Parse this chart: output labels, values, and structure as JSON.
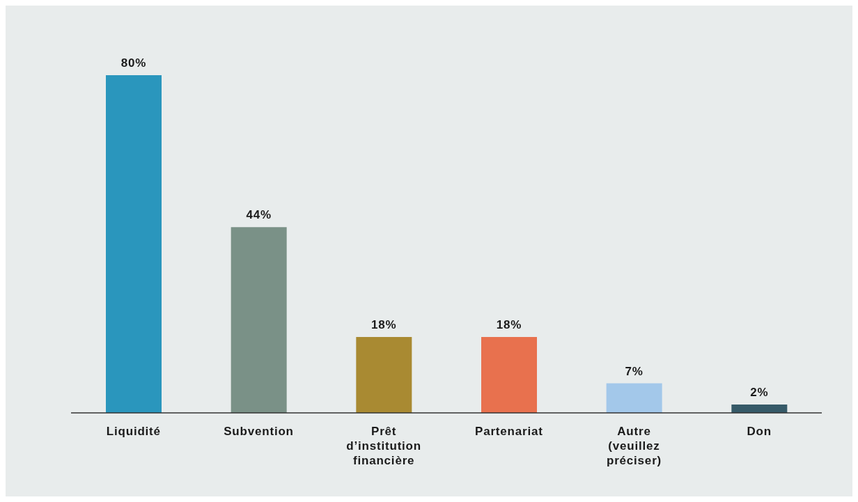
{
  "chart_data": {
    "type": "bar",
    "categories": [
      "Liquidité",
      "Subvention",
      "Prêt d’institution financière",
      "Partenariat",
      "Autre (veuillez préciser)",
      "Don"
    ],
    "values": [
      80,
      44,
      18,
      18,
      7,
      2
    ],
    "colors": [
      "#2a96bd",
      "#7a9187",
      "#a98a32",
      "#e8714e",
      "#a3c8ea",
      "#365a68"
    ],
    "value_labels": [
      "80%",
      "44%",
      "18%",
      "18%",
      "7%",
      "2%"
    ]
  }
}
